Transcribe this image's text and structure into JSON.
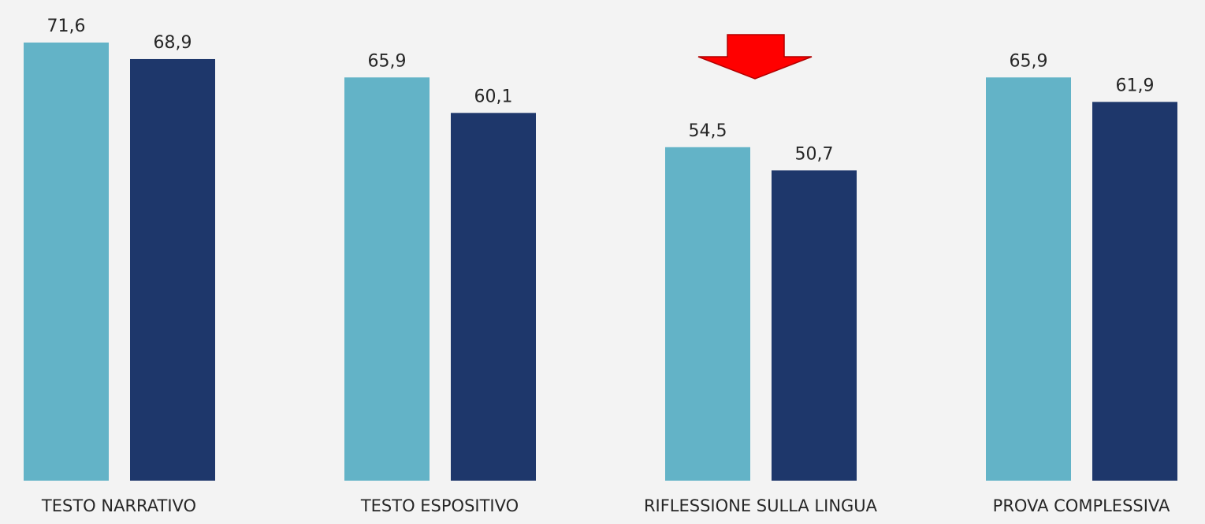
{
  "chart_data": {
    "type": "bar",
    "categories": [
      "TESTO NARRATIVO",
      "TESTO ESPOSITIVO",
      "RIFLESSIONE SULLA LINGUA",
      "PROVA COMPLESSIVA"
    ],
    "series": [
      {
        "values": [
          71.6,
          65.9,
          54.5,
          65.9
        ],
        "labels": [
          "71,6",
          "65,9",
          "54,5",
          "65,9"
        ],
        "color": "#63b3c7"
      },
      {
        "values": [
          68.9,
          60.1,
          50.7,
          61.9
        ],
        "labels": [
          "68,9",
          "60,1",
          "50,7",
          "61,9"
        ],
        "color": "#1e376b"
      }
    ],
    "ylim": [
      0,
      71.6
    ],
    "grid": false,
    "highlight": {
      "category": "RIFLESSIONE SULLA LINGUA",
      "icon": "red-down-arrow-icon",
      "color": "#ff0000"
    }
  },
  "colors": {
    "background": "#f3f3f3",
    "text": "#262626"
  }
}
